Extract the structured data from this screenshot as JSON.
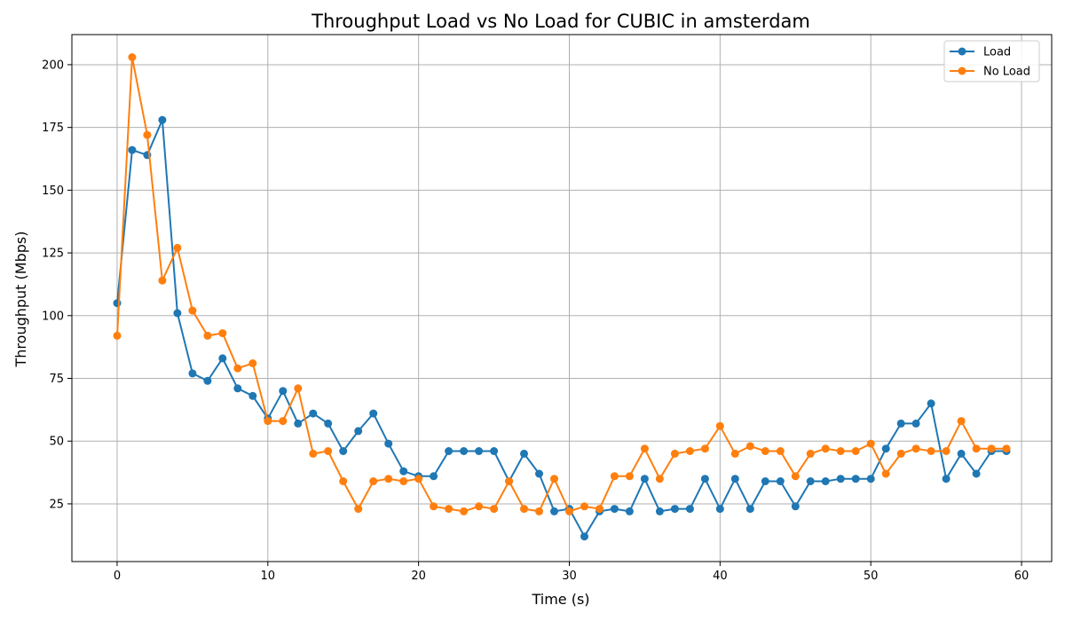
{
  "chart_data": {
    "type": "line",
    "title": "Throughput Load vs No Load for CUBIC in amsterdam",
    "xlabel": "Time (s)",
    "ylabel": "Throughput (Mbps)",
    "xlim": [
      -3,
      62
    ],
    "ylim": [
      2,
      212
    ],
    "xticks": [
      0,
      10,
      20,
      30,
      40,
      50,
      60
    ],
    "yticks": [
      25,
      50,
      75,
      100,
      125,
      150,
      175,
      200
    ],
    "grid": true,
    "legend_position": "top-right",
    "x": [
      0,
      1,
      2,
      3,
      4,
      5,
      6,
      7,
      8,
      9,
      10,
      11,
      12,
      13,
      14,
      15,
      16,
      17,
      18,
      19,
      20,
      21,
      22,
      23,
      24,
      25,
      26,
      27,
      28,
      29,
      30,
      31,
      32,
      33,
      34,
      35,
      36,
      37,
      38,
      39,
      40,
      41,
      42,
      43,
      44,
      45,
      46,
      47,
      48,
      49,
      50,
      51,
      52,
      53,
      54,
      55,
      56,
      57,
      58,
      59
    ],
    "series": [
      {
        "name": "Load",
        "color": "#1f77b4",
        "values": [
          105,
          166,
          164,
          178,
          101,
          77,
          74,
          83,
          71,
          68,
          59,
          70,
          57,
          61,
          57,
          46,
          54,
          61,
          49,
          38,
          36,
          36,
          46,
          46,
          46,
          46,
          34,
          45,
          37,
          22,
          23,
          12,
          22,
          23,
          22,
          35,
          22,
          23,
          23,
          35,
          23,
          35,
          23,
          34,
          34,
          24,
          34,
          34,
          35,
          35,
          35,
          47,
          57,
          57,
          65,
          35,
          45,
          37,
          46,
          46
        ]
      },
      {
        "name": "No Load",
        "color": "#ff7f0e",
        "values": [
          92,
          203,
          172,
          114,
          127,
          102,
          92,
          93,
          79,
          81,
          58,
          58,
          71,
          45,
          46,
          34,
          23,
          34,
          35,
          34,
          35,
          24,
          23,
          22,
          24,
          23,
          34,
          23,
          22,
          35,
          22,
          24,
          23,
          36,
          36,
          47,
          35,
          45,
          46,
          47,
          56,
          45,
          48,
          46,
          46,
          36,
          45,
          47,
          46,
          46,
          49,
          37,
          45,
          47,
          46,
          46,
          58,
          47,
          47,
          47
        ]
      }
    ]
  }
}
